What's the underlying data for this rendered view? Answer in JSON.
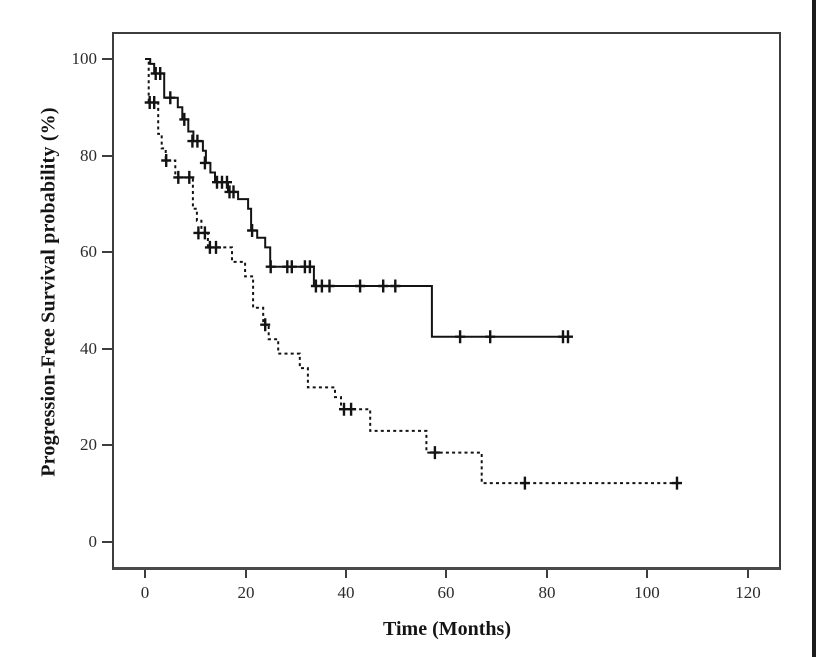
{
  "figure": {
    "background": "#ffffff",
    "edge_bar_color": "#1c1c1c"
  },
  "chart_data": {
    "type": "line",
    "chart_style": "kaplan-meier-step",
    "title": "",
    "xlabel": "Time (Months)",
    "ylabel": "Progression-Free Survival probability (%)",
    "xticks": [
      0,
      20,
      40,
      60,
      80,
      100,
      120
    ],
    "yticks": [
      0,
      20,
      40,
      60,
      80,
      100
    ],
    "xlim": [
      0,
      120
    ],
    "ylim": [
      0,
      100
    ],
    "plot_range": {
      "x": [
        -6.6,
        126.6
      ],
      "y": [
        -5.8,
        105.6
      ]
    },
    "grid": false,
    "legend": "none",
    "line_color": "#131313",
    "series": [
      {
        "name": "upper group (solid line)",
        "style": "solid",
        "color": "#131313",
        "steps": [
          [
            0,
            100
          ],
          [
            1,
            99
          ],
          [
            1.8,
            97
          ],
          [
            3.8,
            92
          ],
          [
            6.5,
            90
          ],
          [
            7.4,
            87.5
          ],
          [
            8.6,
            85
          ],
          [
            9.6,
            83
          ],
          [
            11.5,
            81
          ],
          [
            12.1,
            78.5
          ],
          [
            13,
            76.5
          ],
          [
            13.9,
            74.5
          ],
          [
            16.5,
            72.5
          ],
          [
            18.5,
            71
          ],
          [
            20.5,
            69
          ],
          [
            21.1,
            64.5
          ],
          [
            22.3,
            63
          ],
          [
            23.9,
            61
          ],
          [
            24.9,
            57
          ],
          [
            33.6,
            53
          ],
          [
            57.1,
            42.5
          ]
        ],
        "end_time": 84.5,
        "censor_marks": [
          [
            2.1,
            97
          ],
          [
            3,
            97
          ],
          [
            5,
            92
          ],
          [
            7.8,
            87.5
          ],
          [
            9.4,
            83
          ],
          [
            10.4,
            83
          ],
          [
            11.9,
            78.5
          ],
          [
            14.3,
            74.5
          ],
          [
            15.3,
            74.5
          ],
          [
            16.3,
            74.5
          ],
          [
            16.8,
            72.5
          ],
          [
            17.6,
            72.5
          ],
          [
            21.3,
            64.5
          ],
          [
            25,
            57
          ],
          [
            28.3,
            57
          ],
          [
            29.2,
            57
          ],
          [
            31.8,
            57
          ],
          [
            32.8,
            57
          ],
          [
            34,
            53
          ],
          [
            35.2,
            53
          ],
          [
            36.7,
            53
          ],
          [
            42.8,
            53
          ],
          [
            47.4,
            53
          ],
          [
            49.8,
            53
          ],
          [
            62.7,
            42.5
          ],
          [
            68.7,
            42.5
          ],
          [
            83.2,
            42.5
          ],
          [
            84.2,
            42.5
          ]
        ]
      },
      {
        "name": "lower group (dashed line)",
        "style": "dashed",
        "color": "#131313",
        "steps": [
          [
            0,
            100
          ],
          [
            0.7,
            91
          ],
          [
            2.6,
            84.5
          ],
          [
            3.3,
            81.5
          ],
          [
            4.1,
            79
          ],
          [
            6,
            75.5
          ],
          [
            9.5,
            69
          ],
          [
            10.3,
            66.5
          ],
          [
            11.2,
            64
          ],
          [
            12.5,
            61
          ],
          [
            17.3,
            58
          ],
          [
            19.9,
            55
          ],
          [
            21.5,
            48.5
          ],
          [
            23.5,
            45
          ],
          [
            24.6,
            42
          ],
          [
            26.5,
            39
          ],
          [
            30.8,
            36
          ],
          [
            32.4,
            32
          ],
          [
            37.8,
            30
          ],
          [
            39,
            27.5
          ],
          [
            44.8,
            23
          ],
          [
            56,
            18.5
          ],
          [
            67,
            12.2
          ]
        ],
        "end_time": 106.8,
        "censor_marks": [
          [
            0.9,
            91
          ],
          [
            1.8,
            91
          ],
          [
            4.2,
            79
          ],
          [
            6.6,
            75.5
          ],
          [
            8.8,
            75.5
          ],
          [
            10.6,
            64
          ],
          [
            11.9,
            64
          ],
          [
            12.9,
            61
          ],
          [
            14.1,
            61
          ],
          [
            23.9,
            45
          ],
          [
            39.6,
            27.5
          ],
          [
            41,
            27.5
          ],
          [
            57.7,
            18.5
          ],
          [
            75.6,
            12.2
          ],
          [
            105.9,
            12.2
          ]
        ]
      }
    ]
  }
}
